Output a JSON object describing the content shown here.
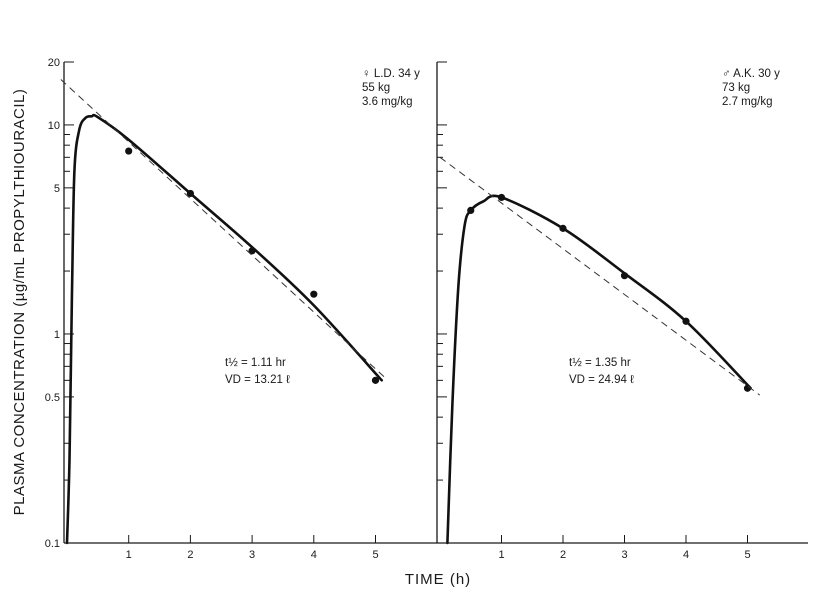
{
  "chart_data": [
    {
      "type": "line",
      "panel": "left",
      "info": [
        "♀ L.D. 34 y",
        "55 kg",
        "3.6 mg/kg"
      ],
      "annotation": [
        "t½ = 1.11 hr",
        "VD = 13.21 ℓ"
      ],
      "yscale": "log",
      "ylim": [
        0.1,
        20
      ],
      "xlim": [
        0,
        5.7
      ],
      "ytick_labels": [
        "0.1",
        "0.5",
        "1",
        "5",
        "10",
        "20"
      ],
      "xtick_labels": [
        "1",
        "2",
        "3",
        "4",
        "5"
      ],
      "series": [
        {
          "kind": "points",
          "x": [
            1,
            2,
            3,
            4,
            5
          ],
          "y": [
            7.5,
            4.7,
            2.5,
            1.55,
            0.6
          ]
        },
        {
          "kind": "fitted-curve",
          "x": [
            0,
            0.04,
            0.08,
            0.12,
            0.2,
            0.3,
            0.4,
            0.5,
            1,
            2,
            3,
            4,
            5.1
          ],
          "y": [
            0.1,
            0.25,
            1.5,
            6,
            9.5,
            10.8,
            11,
            10.9,
            8.5,
            4.7,
            2.6,
            1.37,
            0.6
          ]
        },
        {
          "kind": "extrapolation",
          "x": [
            -0.1,
            5.15
          ],
          "y": [
            16.5,
            0.62
          ]
        }
      ]
    },
    {
      "type": "line",
      "panel": "right",
      "info": [
        "♂ A.K. 30 y",
        "73 kg",
        "2.7 mg/kg"
      ],
      "annotation": [
        "t½ = 1.35 hr",
        "VD = 24.94 ℓ"
      ],
      "yscale": "log",
      "ylim": [
        0.1,
        20
      ],
      "xlim": [
        0,
        5.7
      ],
      "ytick_labels": [],
      "xtick_labels": [
        "1",
        "2",
        "3",
        "4",
        "5"
      ],
      "series": [
        {
          "kind": "points",
          "x": [
            0.5,
            1,
            2,
            3,
            4,
            5
          ],
          "y": [
            3.9,
            4.5,
            3.2,
            1.9,
            1.15,
            0.55
          ]
        },
        {
          "kind": "fitted-curve",
          "x": [
            0.12,
            0.2,
            0.3,
            0.4,
            0.5,
            0.7,
            1,
            2,
            3,
            4,
            5.05
          ],
          "y": [
            0.1,
            0.45,
            1.7,
            3.3,
            3.9,
            4.3,
            4.5,
            3.2,
            1.95,
            1.15,
            0.55
          ]
        },
        {
          "kind": "extrapolation",
          "x": [
            0,
            5.2
          ],
          "y": [
            7,
            0.51
          ]
        }
      ]
    }
  ],
  "ylabel": "PLASMA CONCENTRATION (µg/mL PROPYLTHIOURACIL)",
  "xlabel": "TIME (h)"
}
